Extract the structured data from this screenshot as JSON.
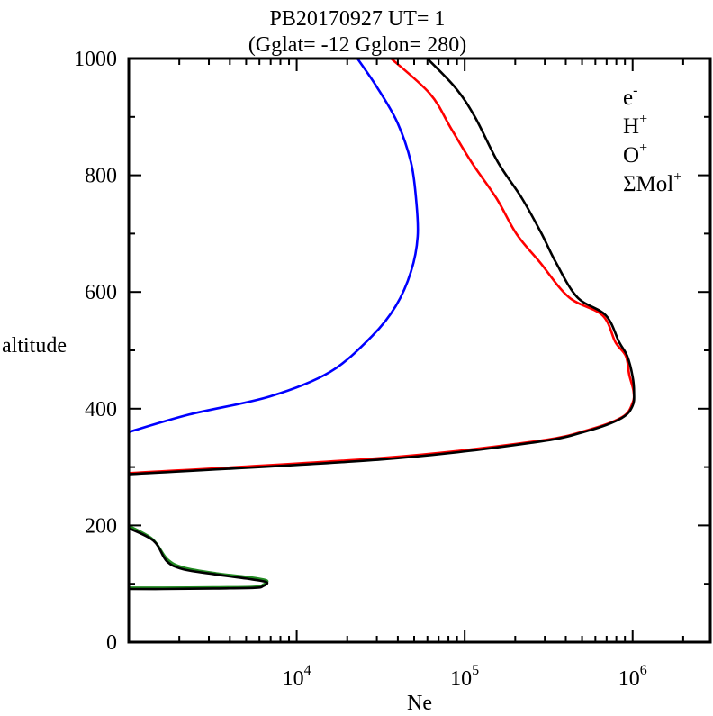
{
  "title": {
    "line1": "PB20170927   UT=  1",
    "line2": "(Gglat= -12   Gglon=  280)"
  },
  "axes": {
    "x_label": "Ne",
    "y_label": "altitude"
  },
  "legend": {
    "items": [
      {
        "name": "electron",
        "base": "e",
        "sup": "-",
        "color": "#000000"
      },
      {
        "name": "h-plus",
        "base": "H",
        "sup": "+",
        "color": "#0000ff"
      },
      {
        "name": "o-plus",
        "base": "O",
        "sup": "+",
        "color": "#ff0000"
      },
      {
        "name": "sum-mol-plus",
        "base": "ΣMol",
        "sup": "+",
        "color": "#228b22"
      }
    ]
  },
  "chart_data": {
    "type": "line",
    "title": "PB20170927 UT= 1 (Gglat= -12 Gglon= 280)",
    "xlabel": "Ne",
    "ylabel": "altitude",
    "x_scale": "log",
    "xlim": [
      1000,
      2900000
    ],
    "ylim": [
      0,
      1000
    ],
    "grid": false,
    "legend_position": "upper right",
    "x_major_ticks": [
      {
        "value": 10000,
        "base": "10",
        "exp": "4"
      },
      {
        "value": 100000,
        "base": "10",
        "exp": "5"
      },
      {
        "value": 1000000,
        "base": "10",
        "exp": "6"
      }
    ],
    "y_major_ticks": [
      0,
      200,
      400,
      600,
      800,
      1000
    ],
    "y_minor_step": 100,
    "frame_color": "#000000",
    "series": [
      {
        "name": "sum-mol-plus",
        "label": "ΣMol+",
        "color": "#228b22",
        "points": [
          [
            970,
            201
          ],
          [
            1380,
            177
          ],
          [
            1700,
            142
          ],
          [
            2120,
            128
          ],
          [
            3300,
            118
          ],
          [
            5000,
            112
          ],
          [
            6600,
            106
          ],
          [
            6350,
            99
          ],
          [
            5600,
            95
          ],
          [
            3200,
            94
          ],
          [
            1600,
            93.5
          ],
          [
            950,
            93.5
          ]
        ]
      },
      {
        "name": "o-plus",
        "label": "O+",
        "color": "#ff0000",
        "points": [
          [
            950,
            289
          ],
          [
            33900,
            316
          ],
          [
            263000,
            344
          ],
          [
            550000,
            364
          ],
          [
            871000,
            386
          ],
          [
            1000000,
            410
          ],
          [
            1012000,
            430
          ],
          [
            955000,
            458
          ],
          [
            912000,
            490
          ],
          [
            790000,
            514
          ],
          [
            661000,
            560
          ],
          [
            417000,
            591
          ],
          [
            282000,
            650
          ],
          [
            204000,
            699
          ],
          [
            155000,
            760
          ],
          [
            110000,
            822
          ],
          [
            83000,
            880
          ],
          [
            62000,
            940
          ],
          [
            35500,
            1003
          ]
        ]
      },
      {
        "name": "electron-f-region",
        "label": "e-",
        "color": "#000000",
        "points": [
          [
            900,
            287
          ],
          [
            32000,
            313
          ],
          [
            255000,
            342
          ],
          [
            540000,
            362
          ],
          [
            860000,
            384
          ],
          [
            1000000,
            405
          ],
          [
            1020000,
            428
          ],
          [
            1000000,
            455
          ],
          [
            930000,
            490
          ],
          [
            832000,
            514
          ],
          [
            692000,
            560
          ],
          [
            468000,
            591
          ],
          [
            350000,
            650
          ],
          [
            288000,
            699
          ],
          [
            220000,
            760
          ],
          [
            158000,
            822
          ],
          [
            115000,
            900
          ],
          [
            88000,
            950
          ],
          [
            58500,
            1003
          ]
        ]
      },
      {
        "name": "electron-e-region",
        "label": "e-",
        "color": "#000000",
        "points": [
          [
            950,
            198
          ],
          [
            1400,
            174
          ],
          [
            1680,
            139
          ],
          [
            2100,
            125
          ],
          [
            3300,
            116
          ],
          [
            5000,
            109
          ],
          [
            6600,
            103
          ],
          [
            6300,
            96
          ],
          [
            5600,
            93
          ],
          [
            3200,
            92
          ],
          [
            1600,
            91
          ],
          [
            950,
            91
          ]
        ]
      },
      {
        "name": "h-plus",
        "label": "H+",
        "color": "#0000ff",
        "points": [
          [
            950,
            358
          ],
          [
            2290,
            390
          ],
          [
            6920,
            421
          ],
          [
            15800,
            463
          ],
          [
            28200,
            525
          ],
          [
            38900,
            576
          ],
          [
            47900,
            635
          ],
          [
            52500,
            695
          ],
          [
            51300,
            760
          ],
          [
            47900,
            822
          ],
          [
            39800,
            890
          ],
          [
            30200,
            950
          ],
          [
            22600,
            1003
          ]
        ]
      }
    ]
  }
}
